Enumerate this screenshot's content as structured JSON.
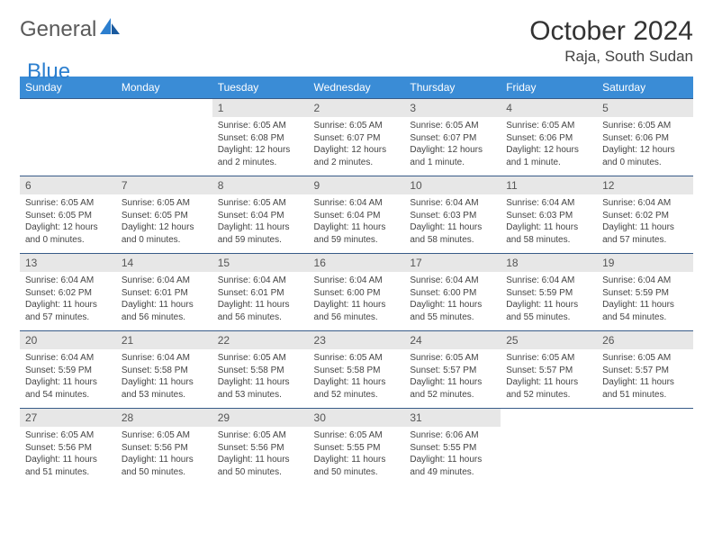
{
  "logo": {
    "text1": "General",
    "text2": "Blue"
  },
  "title": {
    "month": "October 2024",
    "location": "Raja, South Sudan"
  },
  "colors": {
    "header_bg": "#3a8cd6",
    "cell_border": "#385b88",
    "daynum_bg": "#e7e7e7",
    "logo_blue": "#2c7fcf"
  },
  "weekdays": [
    "Sunday",
    "Monday",
    "Tuesday",
    "Wednesday",
    "Thursday",
    "Friday",
    "Saturday"
  ],
  "weeks": [
    [
      {
        "blank": true
      },
      {
        "blank": true
      },
      {
        "num": "1",
        "sunrise": "6:05 AM",
        "sunset": "6:08 PM",
        "daylight": "12 hours and 2 minutes."
      },
      {
        "num": "2",
        "sunrise": "6:05 AM",
        "sunset": "6:07 PM",
        "daylight": "12 hours and 2 minutes."
      },
      {
        "num": "3",
        "sunrise": "6:05 AM",
        "sunset": "6:07 PM",
        "daylight": "12 hours and 1 minute."
      },
      {
        "num": "4",
        "sunrise": "6:05 AM",
        "sunset": "6:06 PM",
        "daylight": "12 hours and 1 minute."
      },
      {
        "num": "5",
        "sunrise": "6:05 AM",
        "sunset": "6:06 PM",
        "daylight": "12 hours and 0 minutes."
      }
    ],
    [
      {
        "num": "6",
        "sunrise": "6:05 AM",
        "sunset": "6:05 PM",
        "daylight": "12 hours and 0 minutes."
      },
      {
        "num": "7",
        "sunrise": "6:05 AM",
        "sunset": "6:05 PM",
        "daylight": "12 hours and 0 minutes."
      },
      {
        "num": "8",
        "sunrise": "6:05 AM",
        "sunset": "6:04 PM",
        "daylight": "11 hours and 59 minutes."
      },
      {
        "num": "9",
        "sunrise": "6:04 AM",
        "sunset": "6:04 PM",
        "daylight": "11 hours and 59 minutes."
      },
      {
        "num": "10",
        "sunrise": "6:04 AM",
        "sunset": "6:03 PM",
        "daylight": "11 hours and 58 minutes."
      },
      {
        "num": "11",
        "sunrise": "6:04 AM",
        "sunset": "6:03 PM",
        "daylight": "11 hours and 58 minutes."
      },
      {
        "num": "12",
        "sunrise": "6:04 AM",
        "sunset": "6:02 PM",
        "daylight": "11 hours and 57 minutes."
      }
    ],
    [
      {
        "num": "13",
        "sunrise": "6:04 AM",
        "sunset": "6:02 PM",
        "daylight": "11 hours and 57 minutes."
      },
      {
        "num": "14",
        "sunrise": "6:04 AM",
        "sunset": "6:01 PM",
        "daylight": "11 hours and 56 minutes."
      },
      {
        "num": "15",
        "sunrise": "6:04 AM",
        "sunset": "6:01 PM",
        "daylight": "11 hours and 56 minutes."
      },
      {
        "num": "16",
        "sunrise": "6:04 AM",
        "sunset": "6:00 PM",
        "daylight": "11 hours and 56 minutes."
      },
      {
        "num": "17",
        "sunrise": "6:04 AM",
        "sunset": "6:00 PM",
        "daylight": "11 hours and 55 minutes."
      },
      {
        "num": "18",
        "sunrise": "6:04 AM",
        "sunset": "5:59 PM",
        "daylight": "11 hours and 55 minutes."
      },
      {
        "num": "19",
        "sunrise": "6:04 AM",
        "sunset": "5:59 PM",
        "daylight": "11 hours and 54 minutes."
      }
    ],
    [
      {
        "num": "20",
        "sunrise": "6:04 AM",
        "sunset": "5:59 PM",
        "daylight": "11 hours and 54 minutes."
      },
      {
        "num": "21",
        "sunrise": "6:04 AM",
        "sunset": "5:58 PM",
        "daylight": "11 hours and 53 minutes."
      },
      {
        "num": "22",
        "sunrise": "6:05 AM",
        "sunset": "5:58 PM",
        "daylight": "11 hours and 53 minutes."
      },
      {
        "num": "23",
        "sunrise": "6:05 AM",
        "sunset": "5:58 PM",
        "daylight": "11 hours and 52 minutes."
      },
      {
        "num": "24",
        "sunrise": "6:05 AM",
        "sunset": "5:57 PM",
        "daylight": "11 hours and 52 minutes."
      },
      {
        "num": "25",
        "sunrise": "6:05 AM",
        "sunset": "5:57 PM",
        "daylight": "11 hours and 52 minutes."
      },
      {
        "num": "26",
        "sunrise": "6:05 AM",
        "sunset": "5:57 PM",
        "daylight": "11 hours and 51 minutes."
      }
    ],
    [
      {
        "num": "27",
        "sunrise": "6:05 AM",
        "sunset": "5:56 PM",
        "daylight": "11 hours and 51 minutes."
      },
      {
        "num": "28",
        "sunrise": "6:05 AM",
        "sunset": "5:56 PM",
        "daylight": "11 hours and 50 minutes."
      },
      {
        "num": "29",
        "sunrise": "6:05 AM",
        "sunset": "5:56 PM",
        "daylight": "11 hours and 50 minutes."
      },
      {
        "num": "30",
        "sunrise": "6:05 AM",
        "sunset": "5:55 PM",
        "daylight": "11 hours and 50 minutes."
      },
      {
        "num": "31",
        "sunrise": "6:06 AM",
        "sunset": "5:55 PM",
        "daylight": "11 hours and 49 minutes."
      },
      {
        "blank": true
      },
      {
        "blank": true
      }
    ]
  ]
}
